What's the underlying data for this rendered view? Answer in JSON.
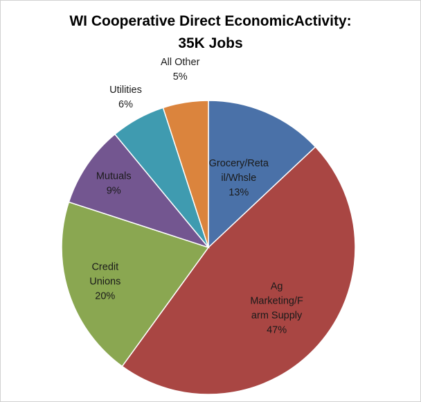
{
  "chart_data": {
    "type": "pie",
    "title_lines": [
      "WI Cooperative Direct EconomicActivity:",
      "35K Jobs"
    ],
    "slices": [
      {
        "label_lines": [
          "Grocery/Reta",
          "il/Whsle",
          "13%"
        ],
        "category": "Grocery/Retail/Whsle",
        "value": 13,
        "color": "#4a71a8"
      },
      {
        "label_lines": [
          "Ag",
          "Marketing/F",
          "arm Supply",
          "47%"
        ],
        "category": "Ag Marketing/Farm Supply",
        "value": 47,
        "color": "#a94643"
      },
      {
        "label_lines": [
          "Credit",
          "Unions",
          "20%"
        ],
        "category": "Credit Unions",
        "value": 20,
        "color": "#8aa751"
      },
      {
        "label_lines": [
          "Mutuals",
          "9%"
        ],
        "category": "Mutuals",
        "value": 9,
        "color": "#735690"
      },
      {
        "label_lines": [
          "Utilities",
          "6%"
        ],
        "category": "Utilities",
        "value": 6,
        "color": "#3f9bb0"
      },
      {
        "label_lines": [
          "All Other",
          "5%"
        ],
        "category": "All Other",
        "value": 5,
        "color": "#db843d"
      }
    ]
  }
}
